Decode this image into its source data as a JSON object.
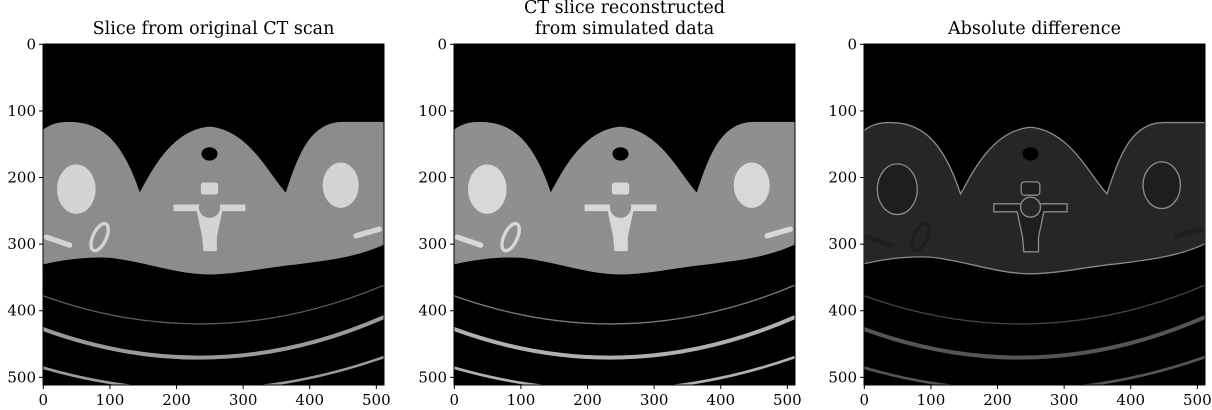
{
  "chart_data": [
    {
      "type": "image",
      "title": "Slice from original CT scan",
      "style": "original",
      "xlim": [
        -0.5,
        511.5
      ],
      "ylim": [
        511.5,
        -0.5
      ],
      "xticks": [
        0,
        100,
        200,
        300,
        400,
        500
      ],
      "yticks": [
        0,
        100,
        200,
        300,
        400,
        500
      ]
    },
    {
      "type": "image",
      "title": "CT slice reconstructed\nfrom simulated data",
      "style": "simulated",
      "xlim": [
        -0.5,
        511.5
      ],
      "ylim": [
        511.5,
        -0.5
      ],
      "xticks": [
        0,
        100,
        200,
        300,
        400,
        500
      ],
      "yticks": [
        0,
        100,
        200,
        300,
        400,
        500
      ]
    },
    {
      "type": "image",
      "title": "Absolute difference",
      "style": "difference",
      "xlim": [
        -0.5,
        511.5
      ],
      "ylim": [
        511.5,
        -0.5
      ],
      "xticks": [
        0,
        100,
        200,
        300,
        400,
        500
      ],
      "yticks": [
        0,
        100,
        200,
        300,
        400,
        500
      ]
    }
  ]
}
